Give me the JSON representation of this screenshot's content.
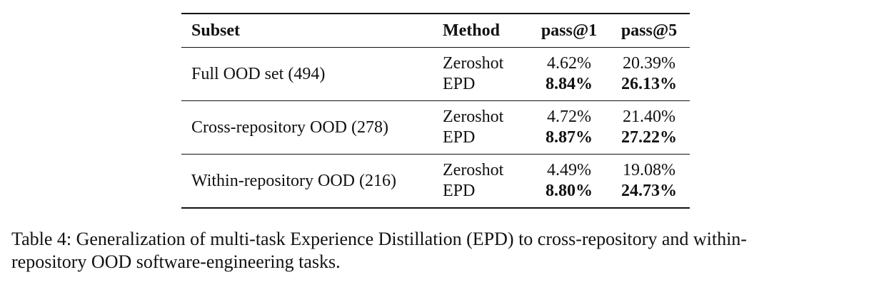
{
  "table": {
    "headers": {
      "subset": "Subset",
      "method": "Method",
      "pass1": "pass@1",
      "pass5": "pass@5"
    },
    "rows": [
      {
        "subset": "Full OOD set (494)",
        "methods": [
          "Zeroshot",
          "EPD"
        ],
        "pass1": [
          "4.62%",
          "8.84%"
        ],
        "pass5": [
          "20.39%",
          "26.13%"
        ]
      },
      {
        "subset": "Cross-repository OOD (278)",
        "methods": [
          "Zeroshot",
          "EPD"
        ],
        "pass1": [
          "4.72%",
          "8.87%"
        ],
        "pass5": [
          "21.40%",
          "27.22%"
        ]
      },
      {
        "subset": "Within-repository OOD (216)",
        "methods": [
          "Zeroshot",
          "EPD"
        ],
        "pass1": [
          "4.49%",
          "8.80%"
        ],
        "pass5": [
          "19.08%",
          "24.73%"
        ]
      }
    ]
  },
  "caption": {
    "line1": "Table 4: Generalization of multi-task Experience Distillation (EPD) to cross-repository and within-",
    "line2": "repository OOD software-engineering tasks."
  }
}
